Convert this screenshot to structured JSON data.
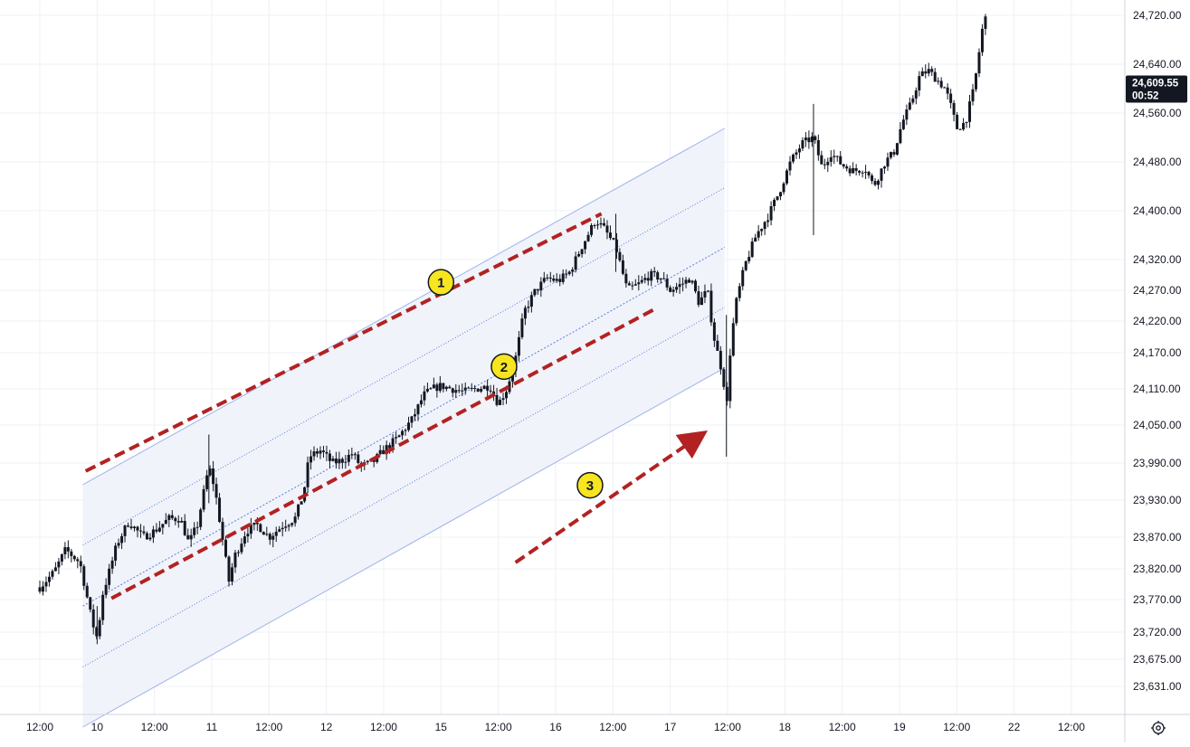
{
  "chart_data": {
    "type": "candlestick",
    "title": "",
    "xlabel": "",
    "ylabel": "",
    "grid": true,
    "ylim": [
      23590,
      24735
    ],
    "price_axis": {
      "ticks": [
        23631,
        23675,
        23720,
        23770,
        23820,
        23870,
        23930,
        23990,
        24050,
        24110,
        24170,
        24220,
        24270,
        24320,
        24400,
        24480,
        24560,
        24640,
        24720
      ],
      "tick_labels": [
        "23,631.00",
        "23,675.00",
        "23,720.00",
        "23,770.00",
        "23,820.00",
        "23,870.00",
        "23,930.00",
        "23,990.00",
        "24,050.00",
        "24,110.00",
        "24,170.00",
        "24,220.00",
        "24,270.00",
        "24,320.00",
        "24,400.00",
        "24,480.00",
        "24,560.00",
        "24,640.00",
        "24,720.00"
      ]
    },
    "time_axis": {
      "labels": [
        "12:00",
        "10",
        "12:00",
        "11",
        "12:00",
        "12",
        "12:00",
        "15",
        "12:00",
        "16",
        "12:00",
        "17",
        "12:00",
        "18",
        "12:00",
        "19",
        "12:00",
        "22",
        "12:00"
      ],
      "label_kind": [
        "time",
        "day",
        "time",
        "day",
        "time",
        "day",
        "time",
        "day",
        "time",
        "day",
        "time",
        "day",
        "time",
        "day",
        "time",
        "day",
        "time",
        "day",
        "time"
      ]
    },
    "last_price": {
      "label": "24,609.55",
      "countdown": "00:52",
      "value": 24609.55
    },
    "price_path": [
      {
        "t": 0.0,
        "p": 23790
      },
      {
        "t": 0.25,
        "p": 23815
      },
      {
        "t": 0.45,
        "p": 23850
      },
      {
        "t": 0.7,
        "p": 23830
      },
      {
        "t": 0.9,
        "p": 23740
      },
      {
        "t": 1.0,
        "p": 23710
      },
      {
        "t": 1.1,
        "p": 23780
      },
      {
        "t": 1.35,
        "p": 23860
      },
      {
        "t": 1.55,
        "p": 23895
      },
      {
        "t": 1.8,
        "p": 23870
      },
      {
        "t": 2.0,
        "p": 23880
      },
      {
        "t": 2.25,
        "p": 23900
      },
      {
        "t": 2.45,
        "p": 23900
      },
      {
        "t": 2.6,
        "p": 23860
      },
      {
        "t": 2.75,
        "p": 23890
      },
      {
        "t": 2.95,
        "p": 23985
      },
      {
        "t": 3.05,
        "p": 23950
      },
      {
        "t": 3.15,
        "p": 23890
      },
      {
        "t": 3.3,
        "p": 23800
      },
      {
        "t": 3.4,
        "p": 23840
      },
      {
        "t": 3.6,
        "p": 23880
      },
      {
        "t": 3.8,
        "p": 23890
      },
      {
        "t": 4.0,
        "p": 23870
      },
      {
        "t": 4.25,
        "p": 23890
      },
      {
        "t": 4.45,
        "p": 23900
      },
      {
        "t": 4.6,
        "p": 23940
      },
      {
        "t": 4.7,
        "p": 24000
      },
      {
        "t": 4.9,
        "p": 24010
      },
      {
        "t": 5.1,
        "p": 23990
      },
      {
        "t": 5.3,
        "p": 23995
      },
      {
        "t": 5.45,
        "p": 24005
      },
      {
        "t": 5.6,
        "p": 23985
      },
      {
        "t": 5.8,
        "p": 23990
      },
      {
        "t": 6.0,
        "p": 24010
      },
      {
        "t": 6.25,
        "p": 24030
      },
      {
        "t": 6.5,
        "p": 24060
      },
      {
        "t": 6.7,
        "p": 24100
      },
      {
        "t": 6.85,
        "p": 24110
      },
      {
        "t": 7.0,
        "p": 24115
      },
      {
        "t": 7.2,
        "p": 24110
      },
      {
        "t": 7.4,
        "p": 24105
      },
      {
        "t": 7.6,
        "p": 24110
      },
      {
        "t": 7.85,
        "p": 24115
      },
      {
        "t": 8.0,
        "p": 24085
      },
      {
        "t": 8.15,
        "p": 24110
      },
      {
        "t": 8.3,
        "p": 24160
      },
      {
        "t": 8.45,
        "p": 24235
      },
      {
        "t": 8.65,
        "p": 24270
      },
      {
        "t": 8.85,
        "p": 24290
      },
      {
        "t": 9.05,
        "p": 24285
      },
      {
        "t": 9.25,
        "p": 24300
      },
      {
        "t": 9.45,
        "p": 24340
      },
      {
        "t": 9.7,
        "p": 24385
      },
      {
        "t": 9.85,
        "p": 24370
      },
      {
        "t": 10.05,
        "p": 24340
      },
      {
        "t": 10.25,
        "p": 24270
      },
      {
        "t": 10.45,
        "p": 24280
      },
      {
        "t": 10.65,
        "p": 24295
      },
      {
        "t": 10.85,
        "p": 24290
      },
      {
        "t": 11.0,
        "p": 24270
      },
      {
        "t": 11.2,
        "p": 24280
      },
      {
        "t": 11.35,
        "p": 24290
      },
      {
        "t": 11.5,
        "p": 24250
      },
      {
        "t": 11.65,
        "p": 24270
      },
      {
        "t": 11.75,
        "p": 24200
      },
      {
        "t": 11.9,
        "p": 24140
      },
      {
        "t": 12.0,
        "p": 24080
      },
      {
        "t": 12.05,
        "p": 24180
      },
      {
        "t": 12.15,
        "p": 24250
      },
      {
        "t": 12.3,
        "p": 24310
      },
      {
        "t": 12.5,
        "p": 24360
      },
      {
        "t": 12.7,
        "p": 24390
      },
      {
        "t": 12.9,
        "p": 24430
      },
      {
        "t": 13.1,
        "p": 24480
      },
      {
        "t": 13.3,
        "p": 24510
      },
      {
        "t": 13.5,
        "p": 24520
      },
      {
        "t": 13.65,
        "p": 24470
      },
      {
        "t": 13.8,
        "p": 24495
      },
      {
        "t": 14.0,
        "p": 24475
      },
      {
        "t": 14.2,
        "p": 24465
      },
      {
        "t": 14.4,
        "p": 24470
      },
      {
        "t": 14.55,
        "p": 24440
      },
      {
        "t": 14.75,
        "p": 24480
      },
      {
        "t": 14.9,
        "p": 24495
      },
      {
        "t": 15.05,
        "p": 24545
      },
      {
        "t": 15.2,
        "p": 24575
      },
      {
        "t": 15.35,
        "p": 24620
      },
      {
        "t": 15.5,
        "p": 24630
      },
      {
        "t": 15.65,
        "p": 24615
      },
      {
        "t": 15.8,
        "p": 24600
      },
      {
        "t": 15.9,
        "p": 24570
      },
      {
        "t": 16.0,
        "p": 24535
      },
      {
        "t": 16.15,
        "p": 24545
      },
      {
        "t": 16.3,
        "p": 24600
      },
      {
        "t": 16.45,
        "p": 24700
      },
      {
        "t": 16.55,
        "p": 24730
      }
    ],
    "channel": {
      "x_start": 0.75,
      "x_end": 11.95,
      "upper_start": 23955,
      "upper_end": 24535,
      "mid_start": 23760,
      "mid_end": 24340,
      "lower_start": 23565,
      "lower_end": 24145
    },
    "annotations": [
      {
        "label": "1",
        "arrow_start": [
          0.8,
          23977
        ],
        "arrow_end": [
          9.8,
          24395
        ],
        "arrowhead": false,
        "badge_at": [
          7.0,
          24283
        ]
      },
      {
        "label": "2",
        "arrow_start": [
          1.25,
          23772
        ],
        "arrow_end": [
          10.7,
          24238
        ],
        "arrowhead": false,
        "badge_at": [
          8.1,
          24147
        ]
      },
      {
        "label": "3",
        "arrow_start": [
          8.3,
          23830
        ],
        "arrow_end": [
          11.55,
          24035
        ],
        "arrowhead": true,
        "badge_at": [
          9.6,
          23954
        ]
      }
    ],
    "colors": {
      "candle_color": "#131722",
      "channel_fill": "#f0f3fa",
      "channel_line": "#9fb3ea",
      "channel_mid": "#5b7ed8",
      "annotation": "#b22222",
      "badge_fill": "#f6e51f",
      "grid": "#eef0f4"
    }
  }
}
